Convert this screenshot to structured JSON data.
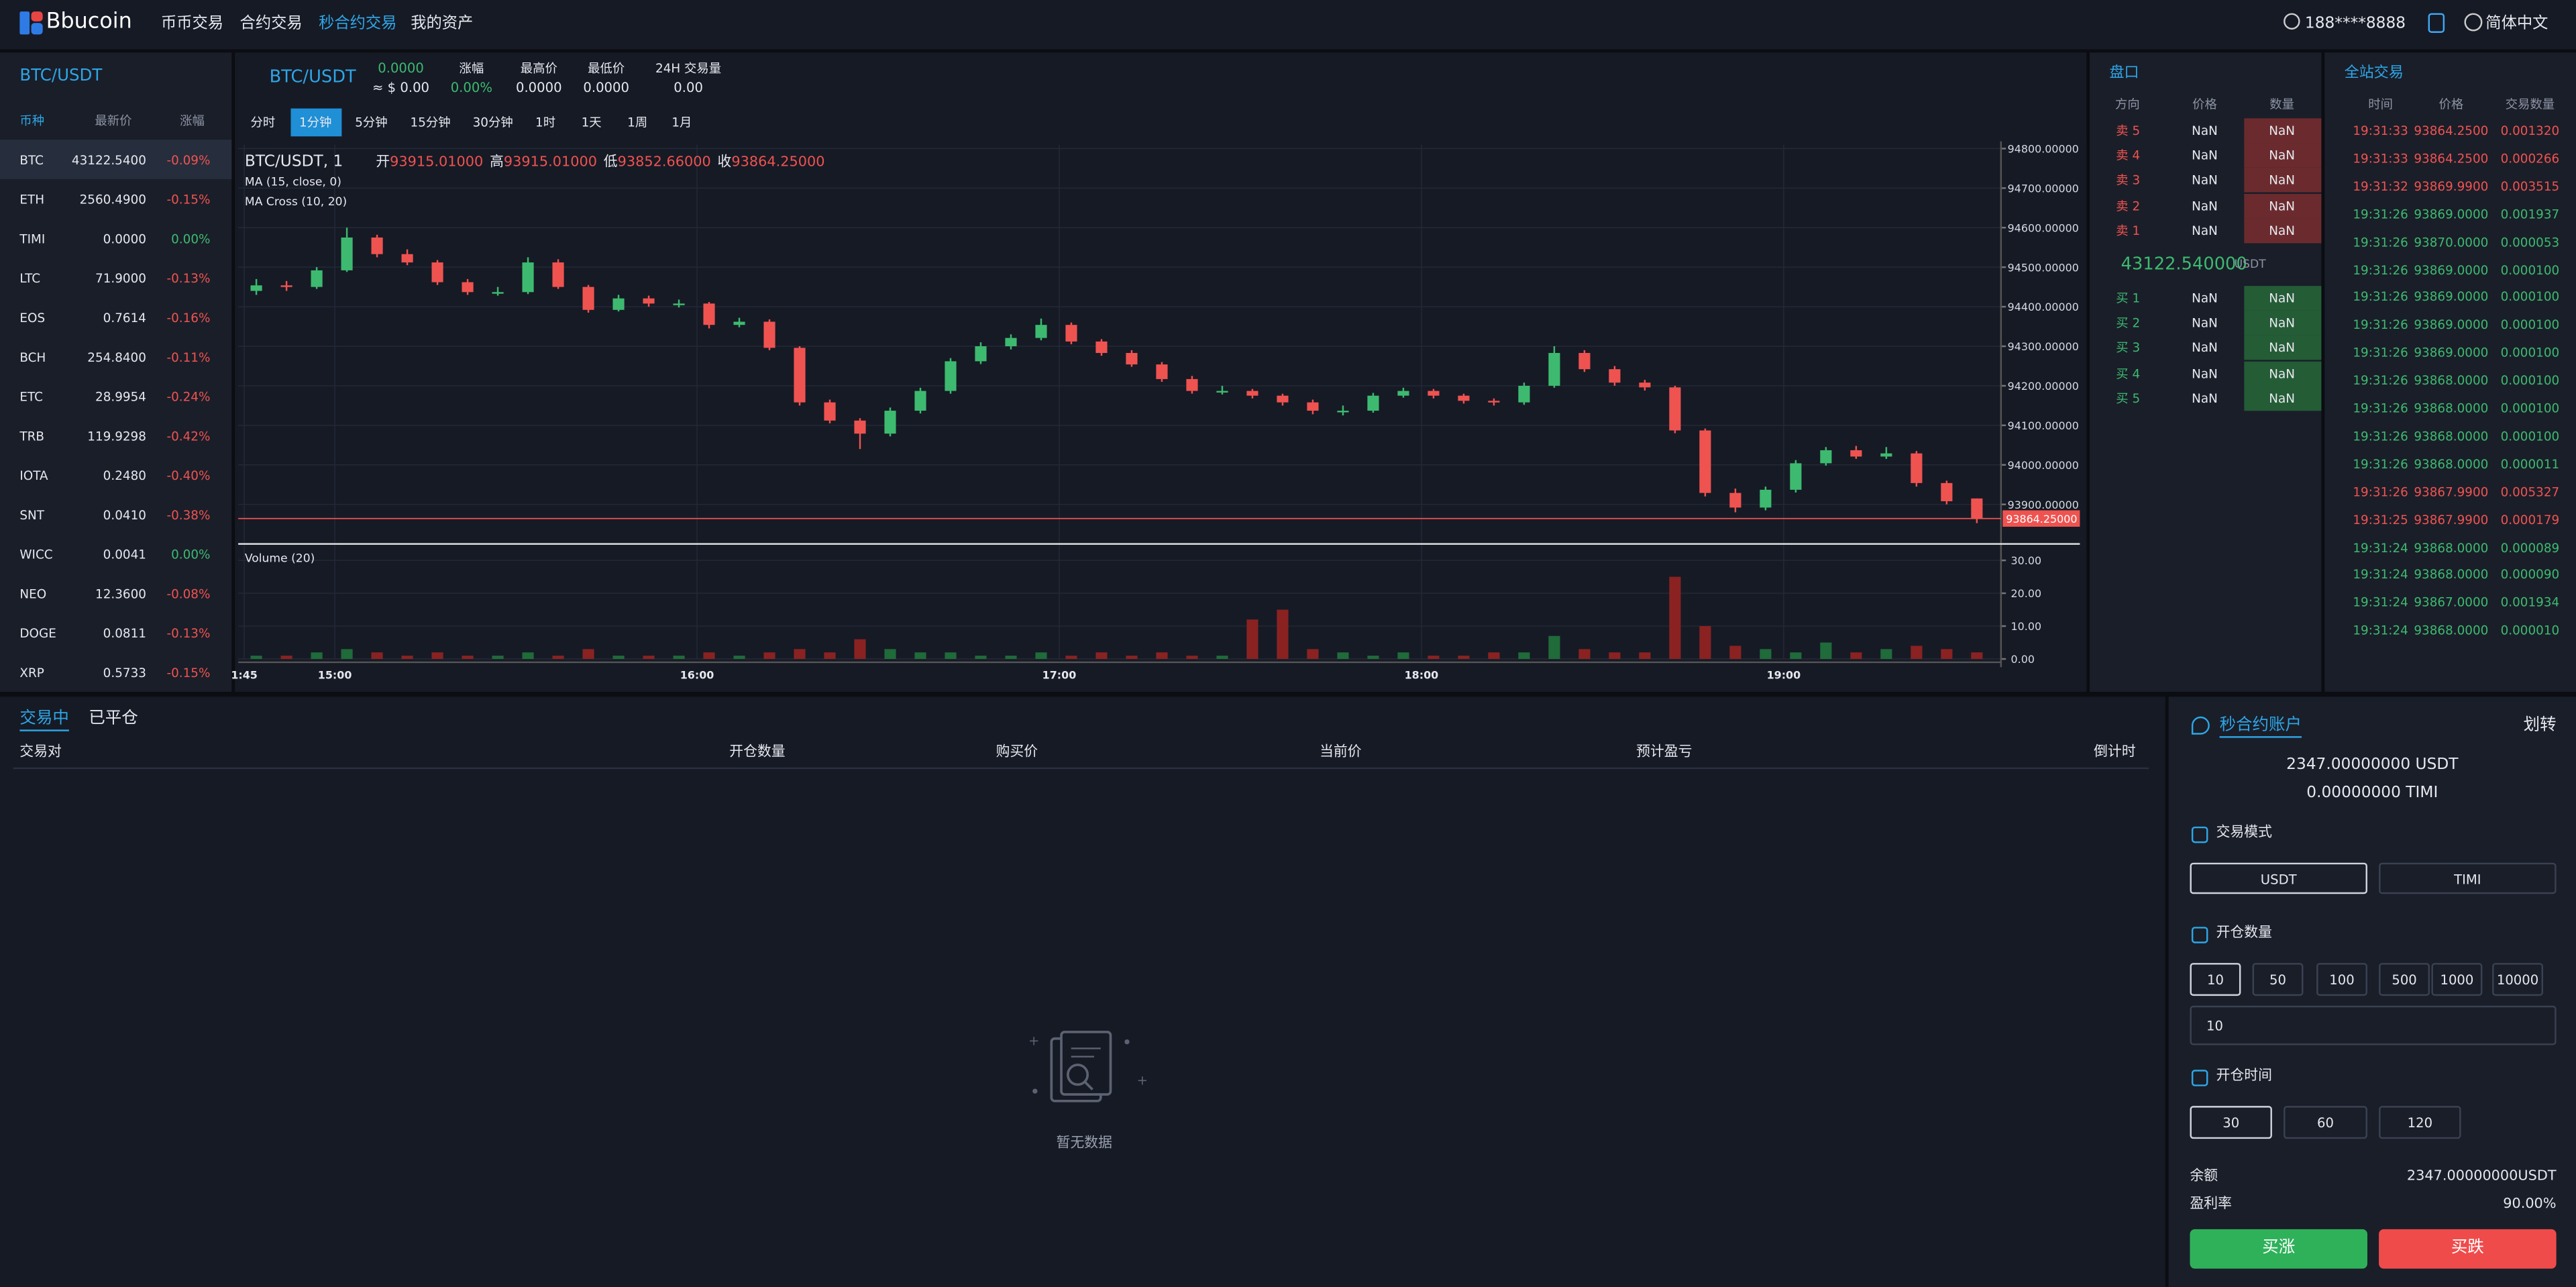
{
  "nav": {
    "logo": "Bbucoin",
    "items": [
      "币币交易",
      "合约交易",
      "秒合约交易",
      "我的资产"
    ],
    "active": 2,
    "user": "188****8888",
    "language": "简体中文"
  },
  "markets": {
    "title": "BTC/USDT",
    "headers": [
      "币种",
      "最新价",
      "涨幅"
    ],
    "selected": 0,
    "rows": [
      {
        "coin": "BTC",
        "price": "43122.5400",
        "change": "-0.09%",
        "trend": "down"
      },
      {
        "coin": "ETH",
        "price": "2560.4900",
        "change": "-0.15%",
        "trend": "down"
      },
      {
        "coin": "TIMI",
        "price": "0.0000",
        "change": "0.00%",
        "trend": "up"
      },
      {
        "coin": "LTC",
        "price": "71.9000",
        "change": "-0.13%",
        "trend": "down"
      },
      {
        "coin": "EOS",
        "price": "0.7614",
        "change": "-0.16%",
        "trend": "down"
      },
      {
        "coin": "BCH",
        "price": "254.8400",
        "change": "-0.11%",
        "trend": "down"
      },
      {
        "coin": "ETC",
        "price": "28.9954",
        "change": "-0.24%",
        "trend": "down"
      },
      {
        "coin": "TRB",
        "price": "119.9298",
        "change": "-0.42%",
        "trend": "down"
      },
      {
        "coin": "IOTA",
        "price": "0.2480",
        "change": "-0.40%",
        "trend": "down"
      },
      {
        "coin": "SNT",
        "price": "0.0410",
        "change": "-0.38%",
        "trend": "down"
      },
      {
        "coin": "WICC",
        "price": "0.0041",
        "change": "0.00%",
        "trend": "up"
      },
      {
        "coin": "NEO",
        "price": "12.3600",
        "change": "-0.08%",
        "trend": "down"
      },
      {
        "coin": "DOGE",
        "price": "0.0811",
        "change": "-0.13%",
        "trend": "down"
      },
      {
        "coin": "XRP",
        "price": "0.5733",
        "change": "-0.15%",
        "trend": "down"
      }
    ]
  },
  "ticker": {
    "pair": "BTC/USDT",
    "price": "0.0000",
    "price_usd": "≈ $ 0.00",
    "stats": [
      {
        "label": "涨幅",
        "value": "0.00%",
        "trend": "up"
      },
      {
        "label": "最高价",
        "value": "0.0000"
      },
      {
        "label": "最低价",
        "value": "0.0000"
      },
      {
        "label": "24H 交易量",
        "value": "0.00"
      }
    ]
  },
  "intervals": {
    "items": [
      "分时",
      "1分钟",
      "5分钟",
      "15分钟",
      "30分钟",
      "1时",
      "1天",
      "1周",
      "1月"
    ],
    "active": 1
  },
  "chart_data": {
    "type": "candlestick",
    "symbol": "BTC/USDT, 1",
    "ohlc_labels": [
      "开",
      "高",
      "低",
      "收"
    ],
    "ohlc_value_labels": [
      "93915.01000",
      "93915.01000",
      "93852.66000",
      "93864.25000"
    ],
    "indicators": [
      "MA (15, close, 0)",
      "MA Cross (10, 20)"
    ],
    "volume_title": "Volume (20)",
    "up_color": "#3dba6f",
    "down_color": "#ef5350",
    "up_volume_color": "#1f6b3a",
    "down_volume_color": "#8a2222",
    "grid": true,
    "x": [
      887,
      892,
      897,
      902,
      907,
      912,
      917,
      922,
      927,
      932,
      937,
      942,
      947,
      952,
      957,
      962,
      967,
      972,
      977,
      982,
      987,
      992,
      997,
      1002,
      1007,
      1012,
      1017,
      1022,
      1027,
      1032,
      1037,
      1042,
      1047,
      1052,
      1057,
      1062,
      1067,
      1072,
      1077,
      1082,
      1087,
      1092,
      1097,
      1102,
      1107,
      1112,
      1117,
      1122,
      1127,
      1132,
      1137,
      1142,
      1147,
      1152,
      1157,
      1162,
      1167,
      1172
    ],
    "candles": [
      [
        94440,
        94470,
        94430,
        94454
      ],
      [
        94454,
        94465,
        94440,
        94450
      ],
      [
        94450,
        94500,
        94445,
        94492
      ],
      [
        94492,
        94600,
        94488,
        94575
      ],
      [
        94575,
        94582,
        94525,
        94533
      ],
      [
        94533,
        94545,
        94505,
        94512
      ],
      [
        94512,
        94518,
        94455,
        94462
      ],
      [
        94462,
        94470,
        94430,
        94437
      ],
      [
        94437,
        94450,
        94428,
        94437
      ],
      [
        94437,
        94525,
        94432,
        94512
      ],
      [
        94512,
        94520,
        94445,
        94450
      ],
      [
        94450,
        94455,
        94385,
        94392
      ],
      [
        94392,
        94430,
        94388,
        94421
      ],
      [
        94421,
        94428,
        94400,
        94408
      ],
      [
        94408,
        94418,
        94398,
        94408
      ],
      [
        94408,
        94412,
        94345,
        94354
      ],
      [
        94354,
        94372,
        94348,
        94362
      ],
      [
        94362,
        94368,
        94290,
        94296
      ],
      [
        94296,
        94300,
        94150,
        94158
      ],
      [
        94158,
        94165,
        94105,
        94112
      ],
      [
        94112,
        94118,
        94040,
        94079
      ],
      [
        94079,
        94145,
        94072,
        94137
      ],
      [
        94137,
        94195,
        94130,
        94187
      ],
      [
        94187,
        94270,
        94180,
        94262
      ],
      [
        94262,
        94310,
        94255,
        94300
      ],
      [
        94300,
        94330,
        94292,
        94321
      ],
      [
        94321,
        94370,
        94315,
        94354
      ],
      [
        94354,
        94360,
        94305,
        94312
      ],
      [
        94312,
        94318,
        94276,
        94283
      ],
      [
        94283,
        94290,
        94248,
        94254
      ],
      [
        94254,
        94260,
        94210,
        94217
      ],
      [
        94217,
        94225,
        94180,
        94187
      ],
      [
        94187,
        94200,
        94178,
        94187
      ],
      [
        94187,
        94192,
        94168,
        94175
      ],
      [
        94175,
        94180,
        94150,
        94158
      ],
      [
        94158,
        94165,
        94128,
        94137
      ],
      [
        94137,
        94150,
        94125,
        94137
      ],
      [
        94137,
        94182,
        94132,
        94175
      ],
      [
        94175,
        94195,
        94170,
        94187
      ],
      [
        94187,
        94192,
        94168,
        94175
      ],
      [
        94175,
        94180,
        94155,
        94162
      ],
      [
        94162,
        94168,
        94150,
        94158
      ],
      [
        94158,
        94208,
        94152,
        94200
      ],
      [
        94200,
        94300,
        94195,
        94283
      ],
      [
        94283,
        94290,
        94235,
        94242
      ],
      [
        94242,
        94250,
        94200,
        94208
      ],
      [
        94208,
        94215,
        94188,
        94196
      ],
      [
        94196,
        94200,
        94080,
        94087
      ],
      [
        94087,
        94092,
        93920,
        93929
      ],
      [
        93929,
        93940,
        93880,
        93892
      ],
      [
        93892,
        93945,
        93885,
        93937
      ],
      [
        93937,
        94012,
        93930,
        94004
      ],
      [
        94004,
        94045,
        93998,
        94037
      ],
      [
        94037,
        94048,
        94015,
        94021
      ],
      [
        94021,
        94045,
        94015,
        94029
      ],
      [
        94029,
        94035,
        93945,
        93954
      ],
      [
        93954,
        93960,
        93900,
        93908
      ],
      [
        93915.01,
        93915.01,
        93852.66,
        93864.25
      ]
    ],
    "volumes": [
      1,
      1,
      2,
      3,
      2,
      1,
      2,
      1,
      1,
      2,
      1,
      3,
      1,
      1,
      1,
      2,
      1,
      2,
      3,
      2,
      6,
      3,
      2,
      2,
      1,
      1,
      2,
      1,
      2,
      1,
      2,
      1,
      1,
      12,
      15,
      3,
      2,
      1,
      2,
      1,
      1,
      2,
      2,
      7,
      3,
      2,
      2,
      25,
      10,
      4,
      3,
      2,
      5,
      2,
      3,
      4,
      3,
      2
    ],
    "xlim": [
      884,
      1176
    ],
    "xticks": [
      {
        "value": 885,
        "label": "1:45"
      },
      {
        "value": 900,
        "label": "15:00"
      },
      {
        "value": 960,
        "label": "16:00"
      },
      {
        "value": 1020,
        "label": "17:00"
      },
      {
        "value": 1080,
        "label": "18:00"
      },
      {
        "value": 1140,
        "label": "19:00"
      }
    ],
    "ylim": [
      93800,
      94810
    ],
    "yticks": [
      {
        "value": 93900,
        "label": "93900.00000"
      },
      {
        "value": 94000,
        "label": "94000.00000"
      },
      {
        "value": 94100,
        "label": "94100.00000"
      },
      {
        "value": 94200,
        "label": "94200.00000"
      },
      {
        "value": 94300,
        "label": "94300.00000"
      },
      {
        "value": 94400,
        "label": "94400.00000"
      },
      {
        "value": 94500,
        "label": "94500.00000"
      },
      {
        "value": 94600,
        "label": "94600.00000"
      },
      {
        "value": 94700,
        "label": "94700.00000"
      },
      {
        "value": 94800,
        "label": "94800.00000"
      }
    ],
    "volume_ylim": [
      0,
      32
    ],
    "volume_yticks": [
      {
        "value": 0,
        "label": "0.00"
      },
      {
        "value": 10,
        "label": "10.00"
      },
      {
        "value": 20,
        "label": "20.00"
      },
      {
        "value": 30,
        "label": "30.00"
      }
    ],
    "last_price": {
      "value": 93864.25,
      "label": "93864.25000"
    }
  },
  "orderbook": {
    "title": "盘口",
    "headers": [
      "方向",
      "价格",
      "数量"
    ],
    "asks": [
      {
        "side": "卖 5",
        "price": "NaN",
        "amount": "NaN"
      },
      {
        "side": "卖 4",
        "price": "NaN",
        "amount": "NaN"
      },
      {
        "side": "卖 3",
        "price": "NaN",
        "amount": "NaN"
      },
      {
        "side": "卖 2",
        "price": "NaN",
        "amount": "NaN"
      },
      {
        "side": "卖 1",
        "price": "NaN",
        "amount": "NaN"
      }
    ],
    "last_price": "43122.540000",
    "unit": "USDT",
    "bids": [
      {
        "side": "买 1",
        "price": "NaN",
        "amount": "NaN"
      },
      {
        "side": "买 2",
        "price": "NaN",
        "amount": "NaN"
      },
      {
        "side": "买 3",
        "price": "NaN",
        "amount": "NaN"
      },
      {
        "side": "买 4",
        "price": "NaN",
        "amount": "NaN"
      },
      {
        "side": "买 5",
        "price": "NaN",
        "amount": "NaN"
      }
    ]
  },
  "trades": {
    "title": "全站交易",
    "headers": [
      "时间",
      "价格",
      "交易数量"
    ],
    "rows": [
      {
        "time": "19:31:33",
        "price": "93864.2500",
        "amount": "0.001320",
        "side": "sell"
      },
      {
        "time": "19:31:33",
        "price": "93864.2500",
        "amount": "0.000266",
        "side": "sell"
      },
      {
        "time": "19:31:32",
        "price": "93869.9900",
        "amount": "0.003515",
        "side": "sell"
      },
      {
        "time": "19:31:26",
        "price": "93869.0000",
        "amount": "0.001937",
        "side": "buy"
      },
      {
        "time": "19:31:26",
        "price": "93870.0000",
        "amount": "0.000053",
        "side": "buy"
      },
      {
        "time": "19:31:26",
        "price": "93869.0000",
        "amount": "0.000100",
        "side": "buy"
      },
      {
        "time": "19:31:26",
        "price": "93869.0000",
        "amount": "0.000100",
        "side": "buy"
      },
      {
        "time": "19:31:26",
        "price": "93869.0000",
        "amount": "0.000100",
        "side": "buy"
      },
      {
        "time": "19:31:26",
        "price": "93869.0000",
        "amount": "0.000100",
        "side": "buy"
      },
      {
        "time": "19:31:26",
        "price": "93868.0000",
        "amount": "0.000100",
        "side": "buy"
      },
      {
        "time": "19:31:26",
        "price": "93868.0000",
        "amount": "0.000100",
        "side": "buy"
      },
      {
        "time": "19:31:26",
        "price": "93868.0000",
        "amount": "0.000100",
        "side": "buy"
      },
      {
        "time": "19:31:26",
        "price": "93868.0000",
        "amount": "0.000011",
        "side": "buy"
      },
      {
        "time": "19:31:26",
        "price": "93867.9900",
        "amount": "0.005327",
        "side": "sell"
      },
      {
        "time": "19:31:25",
        "price": "93867.9900",
        "amount": "0.000179",
        "side": "sell"
      },
      {
        "time": "19:31:24",
        "price": "93868.0000",
        "amount": "0.000089",
        "side": "buy"
      },
      {
        "time": "19:31:24",
        "price": "93868.0000",
        "amount": "0.000090",
        "side": "buy"
      },
      {
        "time": "19:31:24",
        "price": "93867.0000",
        "amount": "0.001934",
        "side": "buy"
      },
      {
        "time": "19:31:24",
        "price": "93868.0000",
        "amount": "0.000010",
        "side": "buy"
      }
    ]
  },
  "positions": {
    "tabs": [
      "交易中",
      "已平仓"
    ],
    "active": 0,
    "columns": [
      "交易对",
      "开仓数量",
      "购买价",
      "当前价",
      "预计盈亏",
      "倒计时"
    ],
    "empty": "暂无数据"
  },
  "account": {
    "title": "秒合约账户",
    "transfer": "划转",
    "balances": [
      "2347.00000000 USDT",
      "0.00000000 TIMI"
    ],
    "mode_label": "交易模式",
    "modes": [
      "USDT",
      "TIMI"
    ],
    "mode_active": 0,
    "amount_label": "开仓数量",
    "amounts": [
      "10",
      "50",
      "100",
      "500",
      "1000",
      "10000"
    ],
    "amount_active": 0,
    "amount_input": "10",
    "time_label": "开仓时间",
    "times": [
      "30",
      "60",
      "120"
    ],
    "time_active": 0,
    "balance_label": "余额",
    "balance": "2347.00000000USDT",
    "rate_label": "盈利率",
    "rate": "90.00%",
    "buy_up": "买涨",
    "buy_down": "买跌"
  }
}
